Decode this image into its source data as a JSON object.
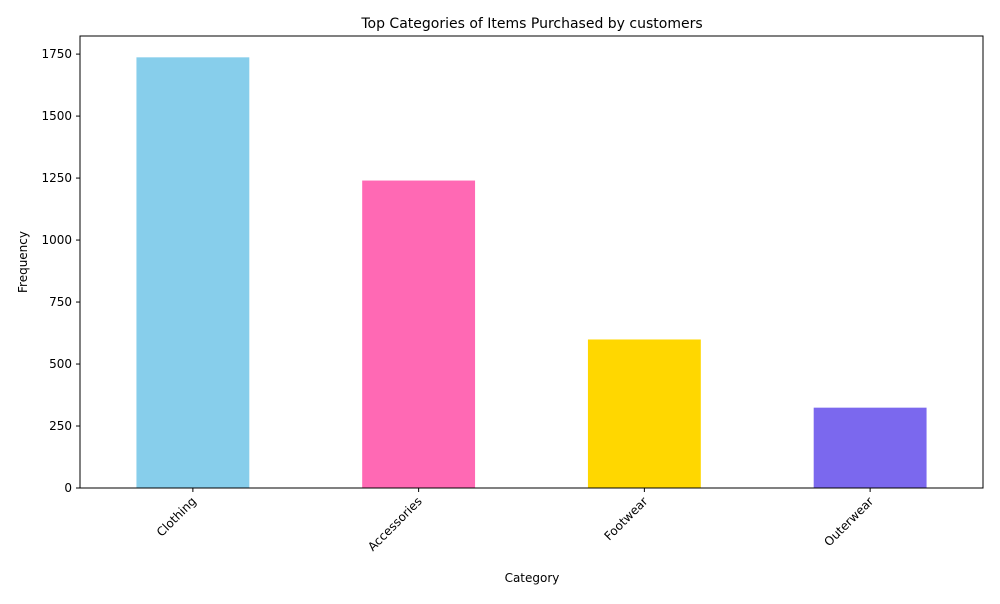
{
  "chart_data": {
    "type": "bar",
    "title": "Top Categories of Items Purchased by customers",
    "xlabel": "Category",
    "ylabel": "Frequency",
    "categories": [
      "Clothing",
      "Accessories",
      "Footwear",
      "Outerwear"
    ],
    "values": [
      1737,
      1240,
      599,
      324
    ],
    "colors": [
      "#87CEEB",
      "#FF69B4",
      "#FFD700",
      "#7B68EE"
    ],
    "ylim": [
      0,
      1823
    ],
    "yticks": [
      0,
      250,
      500,
      750,
      1000,
      1250,
      1500,
      1750
    ],
    "grid": false,
    "legend": "none"
  }
}
